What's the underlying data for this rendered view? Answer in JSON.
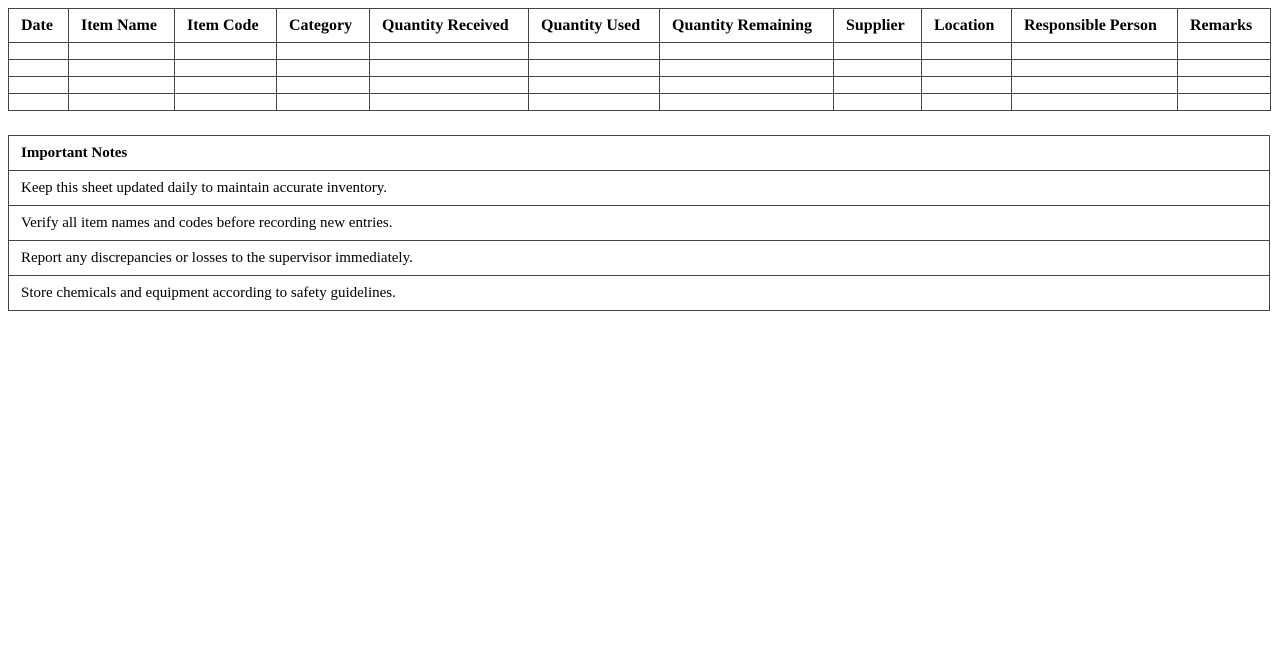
{
  "table": {
    "headers": [
      "Date",
      "Item Name",
      "Item Code",
      "Category",
      "Quantity Received",
      "Quantity Used",
      "Quantity Remaining",
      "Supplier",
      "Location",
      "Responsible Person",
      "Remarks"
    ]
  },
  "notes": {
    "title": "Important Notes",
    "items": [
      "Keep this sheet updated daily to maintain accurate inventory.",
      "Verify all item names and codes before recording new entries.",
      "Report any discrepancies or losses to the supervisor immediately.",
      "Store chemicals and equipment according to safety guidelines."
    ]
  }
}
